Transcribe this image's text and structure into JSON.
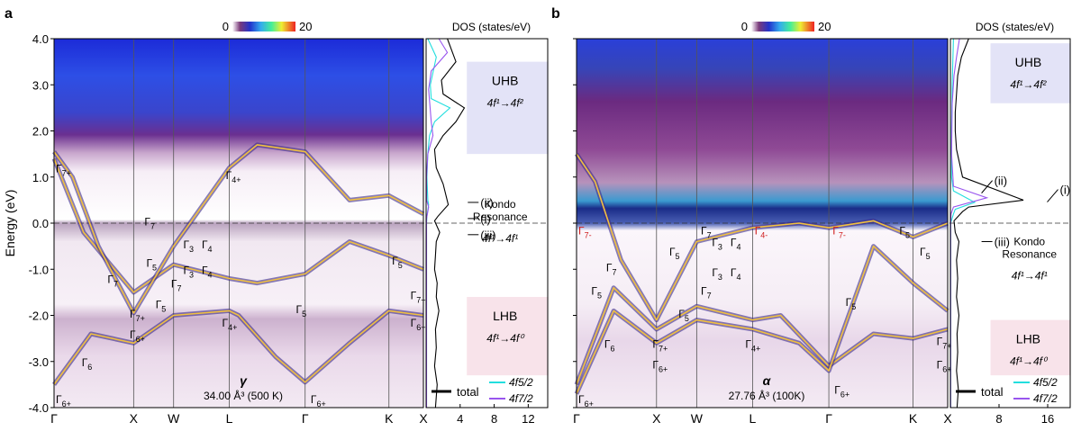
{
  "chart_data": [
    {
      "panel_label": "a",
      "type": "heatmap",
      "ylabel": "Energy (eV)",
      "ylim": [
        -4.0,
        4.0
      ],
      "yticks": [
        "4.0",
        "3.0",
        "2.0",
        "1.0",
        "0.0",
        "-1.0",
        "-2.0",
        "-3.0",
        "-4.0"
      ],
      "ytick_values": [
        4,
        3,
        2,
        1,
        0,
        -1,
        -2,
        -3,
        -4
      ],
      "colorbar": {
        "min_label": "0",
        "max_label": "20"
      },
      "kpath": [
        "Γ",
        "X",
        "W",
        "L",
        "Γ",
        "K",
        "X"
      ],
      "kpos": [
        0,
        0.2155,
        0.3237,
        0.4743,
        0.6798,
        0.9067,
        1.0
      ],
      "bands": [
        {
          "x": [
            0,
            0.1,
            0.2155,
            0.3237,
            0.4743,
            0.5,
            0.6,
            0.6798,
            0.8,
            0.9067,
            1.0
          ],
          "y": [
            -3.5,
            -2.4,
            -2.6,
            -2.0,
            -1.9,
            -2.0,
            -2.9,
            -3.45,
            -2.6,
            -1.9,
            -2.0
          ]
        },
        {
          "x": [
            0,
            0.08,
            0.2155,
            0.3237,
            0.4743,
            0.55,
            0.6798,
            0.8,
            0.9067,
            1.0
          ],
          "y": [
            1.4,
            -0.2,
            -1.5,
            -0.9,
            -1.2,
            -1.3,
            -1.1,
            -0.4,
            -0.7,
            -1.0
          ]
        },
        {
          "x": [
            0,
            0.05,
            0.12,
            0.2155,
            0.3237,
            0.4743,
            0.55,
            0.6798,
            0.8,
            0.9067,
            1.0
          ],
          "y": [
            1.55,
            1.0,
            -0.5,
            -1.95,
            -0.5,
            1.2,
            1.7,
            1.55,
            0.5,
            0.6,
            0.2
          ]
        }
      ],
      "band_labels": [
        {
          "t": "Γ",
          "s": "7+",
          "x": 0.0,
          "e": 1.2
        },
        {
          "t": "Γ",
          "s": "4+",
          "x": 0.46,
          "e": 1.05
        },
        {
          "t": "Γ",
          "s": "7",
          "x": 0.24,
          "e": 0.05
        },
        {
          "t": "Γ",
          "s": "5",
          "x": 0.245,
          "e": -0.85
        },
        {
          "t": "Γ",
          "s": "3",
          "x": 0.345,
          "e": -0.45
        },
        {
          "t": "Γ",
          "s": "4",
          "x": 0.395,
          "e": -0.45
        },
        {
          "t": "Γ",
          "s": "3",
          "x": 0.345,
          "e": -1.0
        },
        {
          "t": "Γ",
          "s": "4",
          "x": 0.395,
          "e": -1.0
        },
        {
          "t": "Γ",
          "s": "7",
          "x": 0.312,
          "e": -1.3
        },
        {
          "t": "Γ",
          "s": "5",
          "x": 0.27,
          "e": -1.75
        },
        {
          "t": "Γ",
          "s": "7",
          "x": 0.14,
          "e": -1.2
        },
        {
          "t": "Γ",
          "s": "7+",
          "x": 0.2,
          "e": -1.95
        },
        {
          "t": "Γ",
          "s": "6+",
          "x": 0.2,
          "e": -2.4
        },
        {
          "t": "Γ",
          "s": "6",
          "x": 0.07,
          "e": -3.0
        },
        {
          "t": "Γ",
          "s": "4+",
          "x": 0.45,
          "e": -2.15
        },
        {
          "t": "Γ",
          "s": "5",
          "x": 0.65,
          "e": -1.85
        },
        {
          "t": "Γ",
          "s": "6+",
          "x": 0.69,
          "e": -3.8
        },
        {
          "t": "Γ",
          "s": "6+",
          "x": 0.0,
          "e": -3.8
        },
        {
          "t": "Γ",
          "s": "5",
          "x": 0.91,
          "e": -0.8
        },
        {
          "t": "Γ",
          "s": "7+",
          "x": 0.96,
          "e": -1.55
        },
        {
          "t": "Γ",
          "s": "6+",
          "x": 0.96,
          "e": -2.15
        }
      ],
      "phase": "γ",
      "volume": "34.00 Å³ (500 K)",
      "dos": {
        "title": "DOS (states/eV)",
        "xticks": [
          "4.0",
          "8.0",
          "12.0"
        ],
        "xtick_values": [
          4,
          8,
          12
        ],
        "xlim": [
          0,
          14.5
        ],
        "series": [
          {
            "name": "total",
            "color": "#000000",
            "x": [
              2.5,
              3.5,
              1.8,
              2.0,
              4.5,
              3.5,
              2.0,
              1.0,
              1.2,
              2.0,
              2.6,
              1.4,
              1.0,
              1.6,
              1.2,
              1.1,
              1.0,
              1.3,
              1.2,
              1.5,
              1.1,
              1.2,
              1.0,
              1.3,
              1.1
            ],
            "y": [
              4.0,
              3.5,
              3.1,
              2.8,
              2.5,
              2.2,
              1.9,
              1.6,
              1.2,
              0.85,
              0.4,
              0.15,
              0.05,
              -0.2,
              -0.4,
              -0.7,
              -1.0,
              -1.3,
              -1.6,
              -1.9,
              -2.3,
              -2.7,
              -3.1,
              -3.5,
              -4.0
            ]
          },
          {
            "name": "4f5/2",
            "color": "#22dede",
            "x": [
              0.2,
              1.2,
              0.5,
              0.6,
              2.8,
              1.0,
              0.4,
              0.2,
              0.1,
              0.2,
              0.3,
              0.1,
              0.05,
              0.05,
              0.05
            ],
            "y": [
              4.0,
              3.6,
              3.0,
              2.7,
              2.5,
              2.2,
              1.9,
              1.5,
              1.0,
              0.5,
              0.4,
              0.15,
              0.0,
              -2.0,
              -4.0
            ]
          },
          {
            "name": "4f7/2",
            "color": "#9955ee",
            "x": [
              1.5,
              2.5,
              0.6,
              0.3,
              0.6,
              0.8,
              0.2,
              0.05,
              0.05,
              0.3,
              0.05,
              0.05,
              0.05
            ],
            "y": [
              4.0,
              3.7,
              3.3,
              2.9,
              2.2,
              1.9,
              1.5,
              1.0,
              0.5,
              0.35,
              0.1,
              -2.0,
              -4.0
            ]
          }
        ],
        "shaded": [
          {
            "label": "UHB",
            "note": "4f¹→4f²",
            "from": 1.5,
            "to": 3.5,
            "color": "#e3e3f7"
          },
          {
            "label": "LHB",
            "note": "4f¹→4f⁰",
            "from": -3.3,
            "to": -1.6,
            "color": "#f8e3ea"
          }
        ],
        "annotations": [
          "(ii)",
          "(i)",
          "(iii)"
        ],
        "kondo": [
          "Kondo",
          "Resonance",
          "4f¹→4f¹"
        ]
      }
    },
    {
      "panel_label": "b",
      "type": "heatmap",
      "ylim": [
        -4.0,
        4.0
      ],
      "colorbar": {
        "min_label": "0",
        "max_label": "20"
      },
      "kpath": [
        "Γ",
        "X",
        "W",
        "L",
        "Γ",
        "K",
        "X"
      ],
      "kpos": [
        0,
        0.2155,
        0.3237,
        0.4743,
        0.6798,
        0.9067,
        1.0
      ],
      "bands": [
        {
          "x": [
            0,
            0.1,
            0.2155,
            0.3237,
            0.4743,
            0.55,
            0.6798,
            0.8,
            0.9067,
            1.0
          ],
          "y": [
            -3.5,
            -1.4,
            -2.3,
            -1.8,
            -2.1,
            -2.0,
            -3.1,
            -2.4,
            -2.5,
            -2.3
          ]
        },
        {
          "x": [
            0,
            0.1,
            0.2155,
            0.3237,
            0.4743,
            0.6,
            0.6798,
            0.8,
            0.9067,
            1.0
          ],
          "y": [
            -3.7,
            -1.9,
            -2.6,
            -2.1,
            -2.3,
            -2.6,
            -3.2,
            -0.5,
            -1.3,
            -1.9
          ]
        },
        {
          "x": [
            0,
            0.05,
            0.12,
            0.2155,
            0.3237,
            0.4743,
            0.6,
            0.6798,
            0.8,
            0.9067,
            1.0
          ],
          "y": [
            1.5,
            0.9,
            -0.8,
            -2.1,
            -0.4,
            -0.1,
            0.0,
            -0.1,
            0.05,
            -0.3,
            0.0
          ]
        }
      ],
      "band_labels": [
        {
          "t": "Γ",
          "s": "7-",
          "x": 0.0,
          "e": -0.15,
          "red": true
        },
        {
          "t": "Γ",
          "s": "4-",
          "x": 0.475,
          "e": -0.15,
          "red": true
        },
        {
          "t": "Γ",
          "s": "7-",
          "x": 0.685,
          "e": -0.15,
          "red": true
        },
        {
          "t": "Γ",
          "s": "7",
          "x": 0.33,
          "e": -0.15
        },
        {
          "t": "Γ",
          "s": "3",
          "x": 0.36,
          "e": -0.4
        },
        {
          "t": "Γ",
          "s": "4",
          "x": 0.41,
          "e": -0.4
        },
        {
          "t": "Γ",
          "s": "5",
          "x": 0.245,
          "e": -0.6
        },
        {
          "t": "Γ",
          "s": "3",
          "x": 0.36,
          "e": -1.05
        },
        {
          "t": "Γ",
          "s": "4",
          "x": 0.41,
          "e": -1.05
        },
        {
          "t": "Γ",
          "s": "7",
          "x": 0.075,
          "e": -0.95
        },
        {
          "t": "Γ",
          "s": "5",
          "x": 0.035,
          "e": -1.45
        },
        {
          "t": "Γ",
          "s": "7",
          "x": 0.33,
          "e": -1.45
        },
        {
          "t": "Γ",
          "s": "5",
          "x": 0.27,
          "e": -1.95
        },
        {
          "t": "Γ",
          "s": "6",
          "x": 0.07,
          "e": -2.6
        },
        {
          "t": "Γ",
          "s": "7+",
          "x": 0.2,
          "e": -2.6
        },
        {
          "t": "Γ",
          "s": "6+",
          "x": 0.2,
          "e": -3.05
        },
        {
          "t": "Γ",
          "s": "4+",
          "x": 0.45,
          "e": -2.6
        },
        {
          "t": "Γ",
          "s": "5",
          "x": 0.72,
          "e": -1.7
        },
        {
          "t": "Γ",
          "s": "6+",
          "x": 0.69,
          "e": -3.6
        },
        {
          "t": "Γ",
          "s": "6+",
          "x": 0.0,
          "e": -3.8
        },
        {
          "t": "Γ",
          "s": "5",
          "x": 0.865,
          "e": -0.15
        },
        {
          "t": "Γ",
          "s": "5",
          "x": 0.92,
          "e": -0.6
        },
        {
          "t": "Γ",
          "s": "7+",
          "x": 0.965,
          "e": -2.55
        },
        {
          "t": "Γ",
          "s": "6+",
          "x": 0.965,
          "e": -3.05
        }
      ],
      "phase": "α",
      "volume": "27.76 Å³ (100K)",
      "dos": {
        "title": "DOS (states/eV)",
        "xticks": [
          "8.0",
          "16.0"
        ],
        "xtick_values": [
          8,
          16
        ],
        "xlim": [
          0,
          20
        ],
        "series": [
          {
            "name": "total",
            "color": "#000000",
            "x": [
              3.0,
              1.8,
              1.2,
              1.0,
              0.8,
              0.8,
              1.0,
              2.0,
              12.0,
              3.0,
              2.0,
              0.6,
              0.8,
              1.4,
              1.0,
              1.2,
              1.0,
              1.4,
              1.1,
              1.2,
              1.0,
              1.3,
              1.1
            ],
            "y": [
              4.0,
              3.6,
              3.2,
              2.8,
              2.4,
              2.0,
              1.6,
              1.0,
              0.5,
              0.35,
              0.25,
              0.05,
              -0.2,
              -0.4,
              -0.8,
              -1.2,
              -1.6,
              -2.0,
              -2.4,
              -2.8,
              -3.2,
              -3.6,
              -4.0
            ]
          },
          {
            "name": "4f5/2",
            "color": "#22dede",
            "x": [
              0.5,
              0.4,
              0.3,
              0.2,
              0.2,
              0.5,
              4.0,
              0.8,
              0.5,
              0.05,
              0.05,
              0.05
            ],
            "y": [
              4.0,
              3.5,
              3.0,
              2.0,
              1.0,
              0.7,
              0.45,
              0.3,
              0.2,
              0.0,
              -2.0,
              -4.0
            ]
          },
          {
            "name": "4f7/2",
            "color": "#9955ee",
            "x": [
              1.5,
              1.0,
              0.6,
              0.3,
              0.2,
              0.5,
              6.0,
              0.5,
              0.1,
              0.05,
              0.05,
              0.05
            ],
            "y": [
              4.0,
              3.6,
              3.2,
              2.6,
              1.5,
              0.8,
              0.55,
              0.35,
              0.2,
              0.0,
              -2.0,
              -4.0
            ]
          }
        ],
        "shaded": [
          {
            "label": "UHB",
            "note": "4f¹→4f²",
            "from": 2.6,
            "to": 3.9,
            "color": "#e3e3f7"
          },
          {
            "label": "LHB",
            "note": "4f¹→4f⁰",
            "from": -3.3,
            "to": -2.1,
            "color": "#f8e3ea"
          }
        ],
        "annotations": [
          "(ii)",
          "(i)",
          "(iii)"
        ],
        "kondo": [
          "Kondo",
          "Resonance",
          "4f¹→4f¹"
        ]
      }
    }
  ]
}
